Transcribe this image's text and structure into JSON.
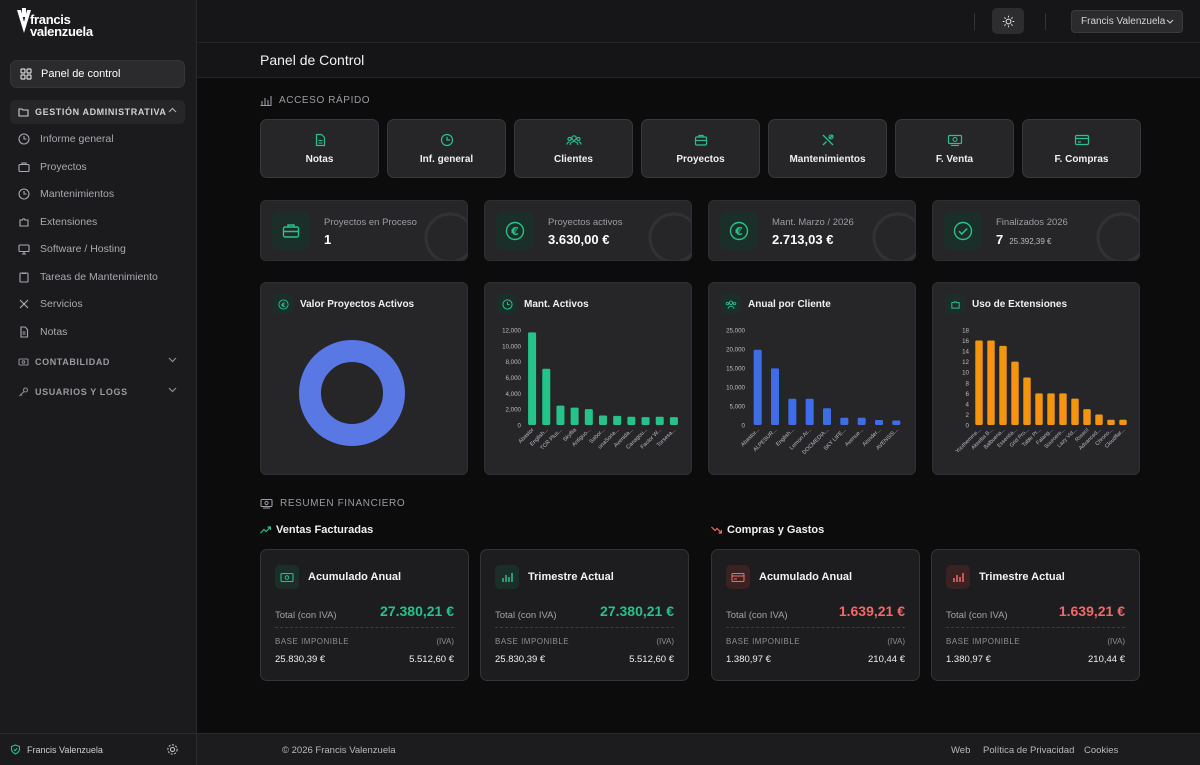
{
  "brand": {
    "line1": "francis",
    "line2": "valenzuela"
  },
  "sidebar": {
    "active": "Panel de control",
    "section_admin": "GESTIÓN ADMINISTRATIVA",
    "items": [
      "Informe general",
      "Proyectos",
      "Mantenimientos",
      "Extensiones",
      "Software / Hosting",
      "Tareas de Mantenimiento",
      "Servicios",
      "Notas"
    ],
    "section_accounting": "CONTABILIDAD",
    "section_users": "USUARIOS Y LOGS",
    "footer_user": "Francis Valenzuela"
  },
  "topbar": {
    "user": "Francis Valenzuela"
  },
  "page_title": "Panel de Control",
  "quick_access": {
    "label": "ACCESO RÁPIDO",
    "items": [
      "Notas",
      "Inf. general",
      "Clientes",
      "Proyectos",
      "Mantenimientos",
      "F. Venta",
      "F. Compras"
    ]
  },
  "stats": [
    {
      "label": "Proyectos en Proceso",
      "value": "1",
      "sub": ""
    },
    {
      "label": "Proyectos activos",
      "value": "3.630,00 €",
      "sub": ""
    },
    {
      "label": "Mant. Marzo / 2026",
      "value": "2.713,03 €",
      "sub": ""
    },
    {
      "label": "Finalizados 2026",
      "value": "7",
      "sub": "25.392,39 €"
    }
  ],
  "charts_titles": [
    "Valor Proyectos Activos",
    "Mant. Activos",
    "Anual por Cliente",
    "Uso de Extensiones"
  ],
  "colors": {
    "green": "#27c28a",
    "blue": "#3d6ee8",
    "orange": "#f4950f",
    "donut": "#5a78e4",
    "red": "#f06a6a"
  },
  "chart_data": [
    {
      "type": "pie",
      "title": "Valor Proyectos Activos",
      "values": [
        100
      ]
    },
    {
      "type": "bar",
      "title": "Mant. Activos",
      "categories": [
        "Abastor",
        "English...",
        "TCR Plus...",
        "Skyflia",
        "Antiguo...",
        "Sabor...",
        "unaSoria...",
        "Avenida...",
        "Canagou...",
        "Factor W...",
        "Torsesa..."
      ],
      "values": [
        11700,
        7100,
        2450,
        2200,
        2000,
        1200,
        1150,
        1050,
        1000,
        1050,
        1000
      ],
      "yticks": [
        "12,000",
        "10,000",
        "8,000",
        "6,000",
        "4,000",
        "2,000",
        "0"
      ],
      "ylim": [
        0,
        12000
      ]
    },
    {
      "type": "bar",
      "title": "Anual por Cliente",
      "categories": [
        "Abastor...",
        "ALPESUR...",
        "English...",
        "Lemon Ar...",
        "DOCMEDIA...",
        "SKY LIFE...",
        "Avenue...",
        "Aisnder...",
        "AVENSIS..."
      ],
      "values": [
        19800,
        14900,
        6900,
        6900,
        4400,
        1900,
        1900,
        1300,
        1200
      ],
      "yticks": [
        "25,000",
        "20,000",
        "15,000",
        "10,000",
        "5,000",
        "0"
      ],
      "ylim": [
        0,
        25000
      ]
    },
    {
      "type": "bar",
      "title": "Uso de Extensiones",
      "categories": [
        "Yoothemme...",
        "Akeeba B...",
        "Balbuena...",
        "Essentia...",
        "Grid Pro...",
        "Table Pr...",
        "Falang...",
        "Sourcere...",
        "Lazy Vid...",
        "Rsseo!",
        "Advanced...",
        "Chrono...",
        "Cloudflar..."
      ],
      "values": [
        16,
        16,
        15,
        12,
        9,
        6,
        6,
        6,
        5,
        3,
        2,
        1,
        1
      ],
      "yticks": [
        "18",
        "16",
        "14",
        "12",
        "10",
        "8",
        "6",
        "4",
        "2",
        "0"
      ],
      "ylim": [
        0,
        18
      ]
    }
  ],
  "finance": {
    "label": "RESUMEN FINANCIERO",
    "sales_title": "Ventas Facturadas",
    "purchases_title": "Compras y Gastos",
    "cards": [
      {
        "title": "Acumulado Anual",
        "total_label": "Total (con IVA)",
        "total": "27.380,21 €",
        "base_label": "BASE IMPONIBLE",
        "iva_label": "(IVA)",
        "base": "25.830,39 €",
        "iva": "5.512,60 €"
      },
      {
        "title": "Trimestre Actual",
        "total_label": "Total (con IVA)",
        "total": "27.380,21 €",
        "base_label": "BASE IMPONIBLE",
        "iva_label": "(IVA)",
        "base": "25.830,39 €",
        "iva": "5.512,60 €"
      },
      {
        "title": "Acumulado Anual",
        "total_label": "Total (con IVA)",
        "total": "1.639,21 €",
        "base_label": "BASE IMPONIBLE",
        "iva_label": "(IVA)",
        "base": "1.380,97 €",
        "iva": "210,44 €"
      },
      {
        "title": "Trimestre Actual",
        "total_label": "Total (con IVA)",
        "total": "1.639,21 €",
        "base_label": "BASE IMPONIBLE",
        "iva_label": "(IVA)",
        "base": "1.380,97 €",
        "iva": "210,44 €"
      }
    ]
  },
  "footer": {
    "copy": "© 2026 Francis Valenzuela",
    "links": [
      "Web",
      "Política de Privacidad",
      "Cookies"
    ]
  }
}
